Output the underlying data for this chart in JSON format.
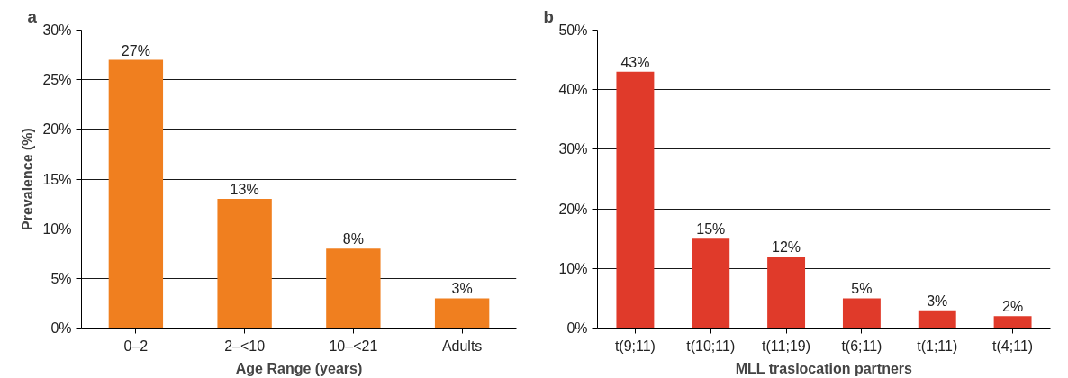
{
  "chart_data": [
    {
      "type": "bar",
      "title": "a",
      "xlabel": "Age Range (years)",
      "ylabel": "Prevalence (%)",
      "categories": [
        "0–2",
        "2–<10",
        "10–<21",
        "Adults"
      ],
      "values": [
        27,
        13,
        8,
        3
      ],
      "value_labels": [
        "27%",
        "13%",
        "8%",
        "3%"
      ],
      "color": "#f07f1f",
      "ylim": [
        0,
        30
      ],
      "yticks": [
        {
          "value": 0,
          "label": "0%"
        },
        {
          "value": 5,
          "label": "5%"
        },
        {
          "value": 10,
          "label": "10%"
        },
        {
          "value": 15,
          "label": "15%"
        },
        {
          "value": 20,
          "label": "20%"
        },
        {
          "value": 25,
          "label": "25%"
        },
        {
          "value": 30,
          "label": "30%"
        }
      ],
      "grid": "y"
    },
    {
      "type": "bar",
      "title": "b",
      "xlabel": "MLL traslocation partners",
      "categories": [
        "t(9;11)",
        "t(10;11)",
        "t(11;19)",
        "t(6;11)",
        "t(1;11)",
        "t(4;11)"
      ],
      "values": [
        43,
        15,
        12,
        5,
        3,
        2
      ],
      "value_labels": [
        "43%",
        "15%",
        "12%",
        "5%",
        "3%",
        "2%"
      ],
      "color": "#e03a2a",
      "ylim": [
        0,
        50
      ],
      "yticks": [
        {
          "value": 0,
          "label": "0%"
        },
        {
          "value": 10,
          "label": "10%"
        },
        {
          "value": 20,
          "label": "20%"
        },
        {
          "value": 30,
          "label": "30%"
        },
        {
          "value": 40,
          "label": "40%"
        },
        {
          "value": 50,
          "label": "50%"
        }
      ],
      "grid": "y"
    }
  ]
}
